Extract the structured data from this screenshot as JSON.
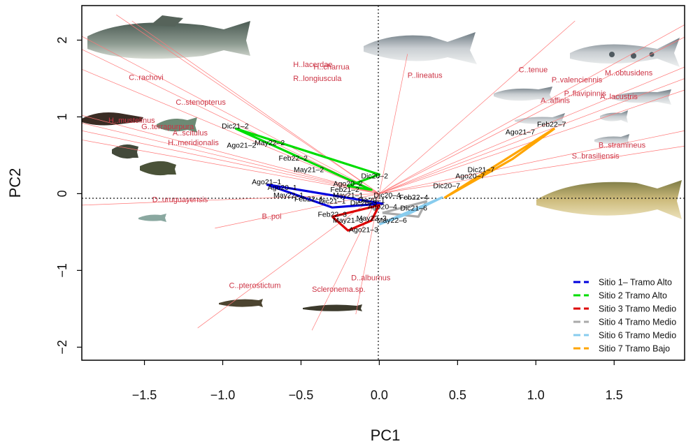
{
  "chart_data": {
    "type": "scatter",
    "xlabel": "PC1",
    "ylabel": "PC2",
    "xlim": [
      -1.9,
      1.95
    ],
    "ylim": [
      -2.17,
      2.45
    ],
    "xticks": [
      -1.5,
      -1.0,
      -0.5,
      0.0,
      0.5,
      1.0,
      1.5
    ],
    "xtick_labels": [
      "−1.5",
      "−1.0",
      "−0.5",
      "0.0",
      "0.5",
      "1.0",
      "1.5"
    ],
    "yticks": [
      -2,
      -1,
      0,
      1,
      2
    ],
    "ytick_labels": [
      "−2",
      "−1",
      "0",
      "1",
      "2"
    ],
    "reference_lines": {
      "x": 0,
      "y": 0,
      "style": "dotted"
    },
    "species_loadings": [
      {
        "label": "H..lacerdae",
        "x": -0.55,
        "y": 1.65,
        "tip": [
          -1.68,
          2.33
        ]
      },
      {
        "label": "H..charrua",
        "x": -0.42,
        "y": 1.62,
        "tip": [
          -1.58,
          2.25
        ]
      },
      {
        "label": "R..longiuscula",
        "x": -0.55,
        "y": 1.47,
        "tip": [
          -1.9,
          2.05
        ]
      },
      {
        "label": "C..rachovi",
        "x": -1.6,
        "y": 1.48,
        "tip": [
          -1.9,
          1.88
        ]
      },
      {
        "label": "C..stenopterus",
        "x": -1.3,
        "y": 1.16,
        "tip": [
          -1.9,
          1.62
        ]
      },
      {
        "label": "H..mustelinus",
        "x": -1.73,
        "y": 0.92,
        "tip": [
          -1.9,
          1.02
        ]
      },
      {
        "label": "G..terrapurpura",
        "x": -1.52,
        "y": 0.84,
        "tip": [
          -1.9,
          0.92
        ]
      },
      {
        "label": "A..scitulus",
        "x": -1.32,
        "y": 0.76,
        "tip": [
          -1.9,
          0.82
        ]
      },
      {
        "label": "H..meridionalis",
        "x": -1.35,
        "y": 0.63,
        "tip": [
          -1.9,
          0.7
        ]
      },
      {
        "label": "D..uruguayensis",
        "x": -1.45,
        "y": -0.11,
        "tip": [
          -1.9,
          -0.15
        ]
      },
      {
        "label": "B..poi",
        "x": -0.75,
        "y": -0.33,
        "tip": [
          -1.05,
          -0.45
        ]
      },
      {
        "label": "C..pterostictum",
        "x": -0.96,
        "y": -1.23,
        "tip": [
          -1.16,
          -1.75
        ]
      },
      {
        "label": "Scleronema.sp.",
        "x": -0.43,
        "y": -1.28,
        "tip": [
          -0.43,
          -1.78
        ]
      },
      {
        "label": "D..alburnus",
        "x": -0.18,
        "y": -1.13,
        "tip": [
          -0.15,
          -1.57
        ]
      },
      {
        "label": "P..lineatus",
        "x": 0.18,
        "y": 1.51,
        "tip": [
          0.18,
          1.82
        ]
      },
      {
        "label": "C..tenue",
        "x": 0.89,
        "y": 1.58,
        "tip": [
          1.25,
          2.25
        ]
      },
      {
        "label": "P..valenciennis",
        "x": 1.1,
        "y": 1.45,
        "tip": [
          1.95,
          2.2
        ]
      },
      {
        "label": "M..obtusidens",
        "x": 1.44,
        "y": 1.54,
        "tip": [
          1.95,
          2.04
        ]
      },
      {
        "label": "P..flavipinnis",
        "x": 1.18,
        "y": 1.27,
        "tip": [
          1.95,
          1.65
        ]
      },
      {
        "label": "A..lacustris",
        "x": 1.41,
        "y": 1.23,
        "tip": [
          1.95,
          1.5
        ]
      },
      {
        "label": "A..affinis",
        "x": 1.03,
        "y": 1.18,
        "tip": [
          1.95,
          1.35
        ]
      },
      {
        "label": "B..stramineus",
        "x": 1.4,
        "y": 0.6,
        "tip": [
          1.95,
          0.82
        ]
      },
      {
        "label": "S..brasiliensis",
        "x": 1.23,
        "y": 0.46,
        "tip": [
          1.95,
          0.62
        ]
      }
    ],
    "series": [
      {
        "name": "Sitio 1– Tramo Alto",
        "color": "#0000dd",
        "path": [
          [
            -0.72,
            0.12
          ],
          [
            0.02,
            -0.13
          ],
          [
            -0.3,
            -0.18
          ],
          [
            -0.72,
            0.12
          ]
        ],
        "points": [
          {
            "label": "Ago21–1",
            "x": -0.72,
            "y": 0.12
          },
          {
            "label": "Ago20–1",
            "x": -0.62,
            "y": 0.05
          },
          {
            "label": "May22–1",
            "x": -0.58,
            "y": -0.05
          },
          {
            "label": "Feb22–1",
            "x": -0.45,
            "y": -0.1
          },
          {
            "label": "Dic21–1",
            "x": -0.3,
            "y": -0.13
          },
          {
            "label": "Dic20–1",
            "x": -0.05,
            "y": -0.12
          },
          {
            "label": "May21–1",
            "x": -0.2,
            "y": -0.05
          }
        ]
      },
      {
        "name": "Sitio 2 Tramo Alto",
        "color": "#00dd00",
        "path": [
          [
            -0.92,
            0.85
          ],
          [
            0.0,
            0.25
          ],
          [
            -0.2,
            0.1
          ],
          [
            -0.05,
            0.05
          ],
          [
            -0.92,
            0.85
          ]
        ],
        "points": [
          {
            "label": "Dic21–2",
            "x": -0.92,
            "y": 0.85
          },
          {
            "label": "Ago21–2",
            "x": -0.88,
            "y": 0.6
          },
          {
            "label": "May22–2",
            "x": -0.7,
            "y": 0.63
          },
          {
            "label": "Feb22–2",
            "x": -0.55,
            "y": 0.43
          },
          {
            "label": "May21–2",
            "x": -0.45,
            "y": 0.28
          },
          {
            "label": "Dic20–2",
            "x": -0.03,
            "y": 0.2
          },
          {
            "label": "Ago20–2",
            "x": -0.2,
            "y": 0.1
          },
          {
            "label": "Feb21–2",
            "x": -0.22,
            "y": 0.02
          }
        ]
      },
      {
        "name": "Sitio 3 Tramo Medio",
        "color": "#dd0000",
        "path": [
          [
            -0.3,
            -0.3
          ],
          [
            -0.2,
            -0.48
          ],
          [
            -0.05,
            -0.35
          ],
          [
            0.0,
            -0.15
          ],
          [
            -0.3,
            -0.3
          ]
        ],
        "points": [
          {
            "label": "Feb22–3",
            "x": -0.3,
            "y": -0.3
          },
          {
            "label": "May21–3",
            "x": -0.2,
            "y": -0.38
          },
          {
            "label": "Ago21–3",
            "x": -0.1,
            "y": -0.5
          },
          {
            "label": "May22–3",
            "x": -0.05,
            "y": -0.35
          },
          {
            "label": "Dic20–3",
            "x": -0.1,
            "y": -0.15
          }
        ]
      },
      {
        "name": "Sitio 4 Tramo Medio",
        "color": "#aaaaaa",
        "path": [
          [
            0.02,
            -0.25
          ],
          [
            0.3,
            -0.1
          ],
          [
            0.25,
            -0.3
          ],
          [
            0.02,
            -0.25
          ]
        ],
        "points": [
          {
            "label": "Dic20–4",
            "x": 0.05,
            "y": -0.05
          },
          {
            "label": "Feb22–4",
            "x": 0.22,
            "y": -0.08
          },
          {
            "label": "Ago20–4",
            "x": 0.02,
            "y": -0.2
          }
        ]
      },
      {
        "name": "Sitio 6 Tramo Medio",
        "color": "#88ccee",
        "path": [
          [
            0.0,
            -0.4
          ],
          [
            0.4,
            -0.05
          ],
          [
            0.2,
            -0.25
          ],
          [
            0.0,
            -0.4
          ]
        ],
        "points": [
          {
            "label": "May22–6",
            "x": 0.08,
            "y": -0.38
          },
          {
            "label": "Dic21–6",
            "x": 0.22,
            "y": -0.22
          }
        ]
      },
      {
        "name": "Sitio 7 Tramo Bajo",
        "color": "#ffa500",
        "path": [
          [
            1.12,
            0.85
          ],
          [
            0.42,
            -0.05
          ],
          [
            0.85,
            0.45
          ],
          [
            1.12,
            0.85
          ]
        ],
        "points": [
          {
            "label": "Feb22–7",
            "x": 1.1,
            "y": 0.87
          },
          {
            "label": "Ago21–7",
            "x": 0.9,
            "y": 0.77
          },
          {
            "label": "Ago20–7",
            "x": 0.58,
            "y": 0.2
          },
          {
            "label": "Dic21–7",
            "x": 0.65,
            "y": 0.28
          },
          {
            "label": "Dic20–7",
            "x": 0.43,
            "y": 0.07
          }
        ]
      }
    ],
    "legend": {
      "position": "bottom-right"
    }
  }
}
